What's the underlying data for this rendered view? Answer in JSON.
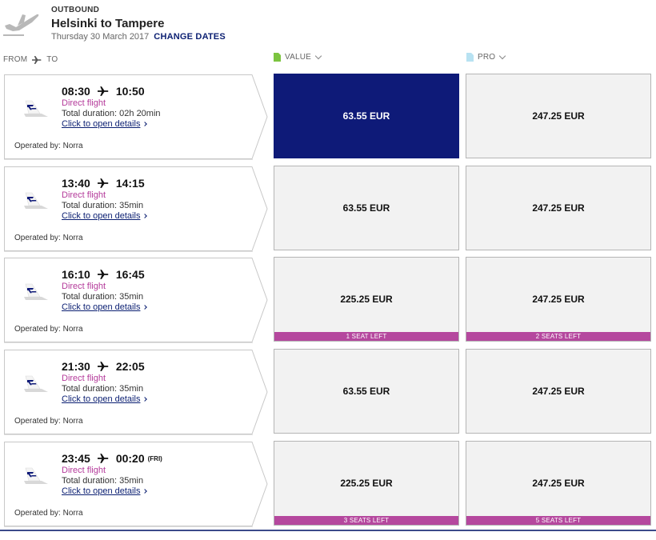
{
  "header": {
    "direction": "OUTBOUND",
    "route": "Helsinki to Tampere",
    "date": "Thursday 30 March 2017",
    "change_dates": "CHANGE DATES",
    "icon": "departure-plane-icon"
  },
  "columns": {
    "from": "FROM",
    "to": "TO",
    "value": "VALUE",
    "pro": "PRO"
  },
  "colors": {
    "selected": "#0e1a78",
    "seats_badge": "#b5489e",
    "direct": "#b43a9a",
    "link": "#0b1f72"
  },
  "flights": [
    {
      "depart": "08:30",
      "arrive": "10:50",
      "next_day": "",
      "type": "Direct flight",
      "duration": "Total duration: 02h 20min",
      "details": "Click to open details",
      "operated": "Operated by: Norra",
      "value": {
        "price": "63.55 EUR",
        "seats": "",
        "selected": true
      },
      "pro": {
        "price": "247.25 EUR",
        "seats": ""
      }
    },
    {
      "depart": "13:40",
      "arrive": "14:15",
      "next_day": "",
      "type": "Direct flight",
      "duration": "Total duration: 35min",
      "details": "Click to open details",
      "operated": "Operated by: Norra",
      "value": {
        "price": "63.55 EUR",
        "seats": "",
        "selected": false
      },
      "pro": {
        "price": "247.25 EUR",
        "seats": ""
      }
    },
    {
      "depart": "16:10",
      "arrive": "16:45",
      "next_day": "",
      "type": "Direct flight",
      "duration": "Total duration: 35min",
      "details": "Click to open details",
      "operated": "Operated by: Norra",
      "value": {
        "price": "225.25 EUR",
        "seats": "1 SEAT LEFT",
        "selected": false
      },
      "pro": {
        "price": "247.25 EUR",
        "seats": "2 SEATS LEFT"
      }
    },
    {
      "depart": "21:30",
      "arrive": "22:05",
      "next_day": "",
      "type": "Direct flight",
      "duration": "Total duration: 35min",
      "details": "Click to open details",
      "operated": "Operated by: Norra",
      "value": {
        "price": "63.55 EUR",
        "seats": "",
        "selected": false
      },
      "pro": {
        "price": "247.25 EUR",
        "seats": ""
      }
    },
    {
      "depart": "23:45",
      "arrive": "00:20",
      "next_day": "(FRI)",
      "type": "Direct flight",
      "duration": "Total duration: 35min",
      "details": "Click to open details",
      "operated": "Operated by: Norra",
      "value": {
        "price": "225.25 EUR",
        "seats": "3 SEATS LEFT",
        "selected": false
      },
      "pro": {
        "price": "247.25 EUR",
        "seats": "5 SEATS LEFT"
      }
    }
  ]
}
